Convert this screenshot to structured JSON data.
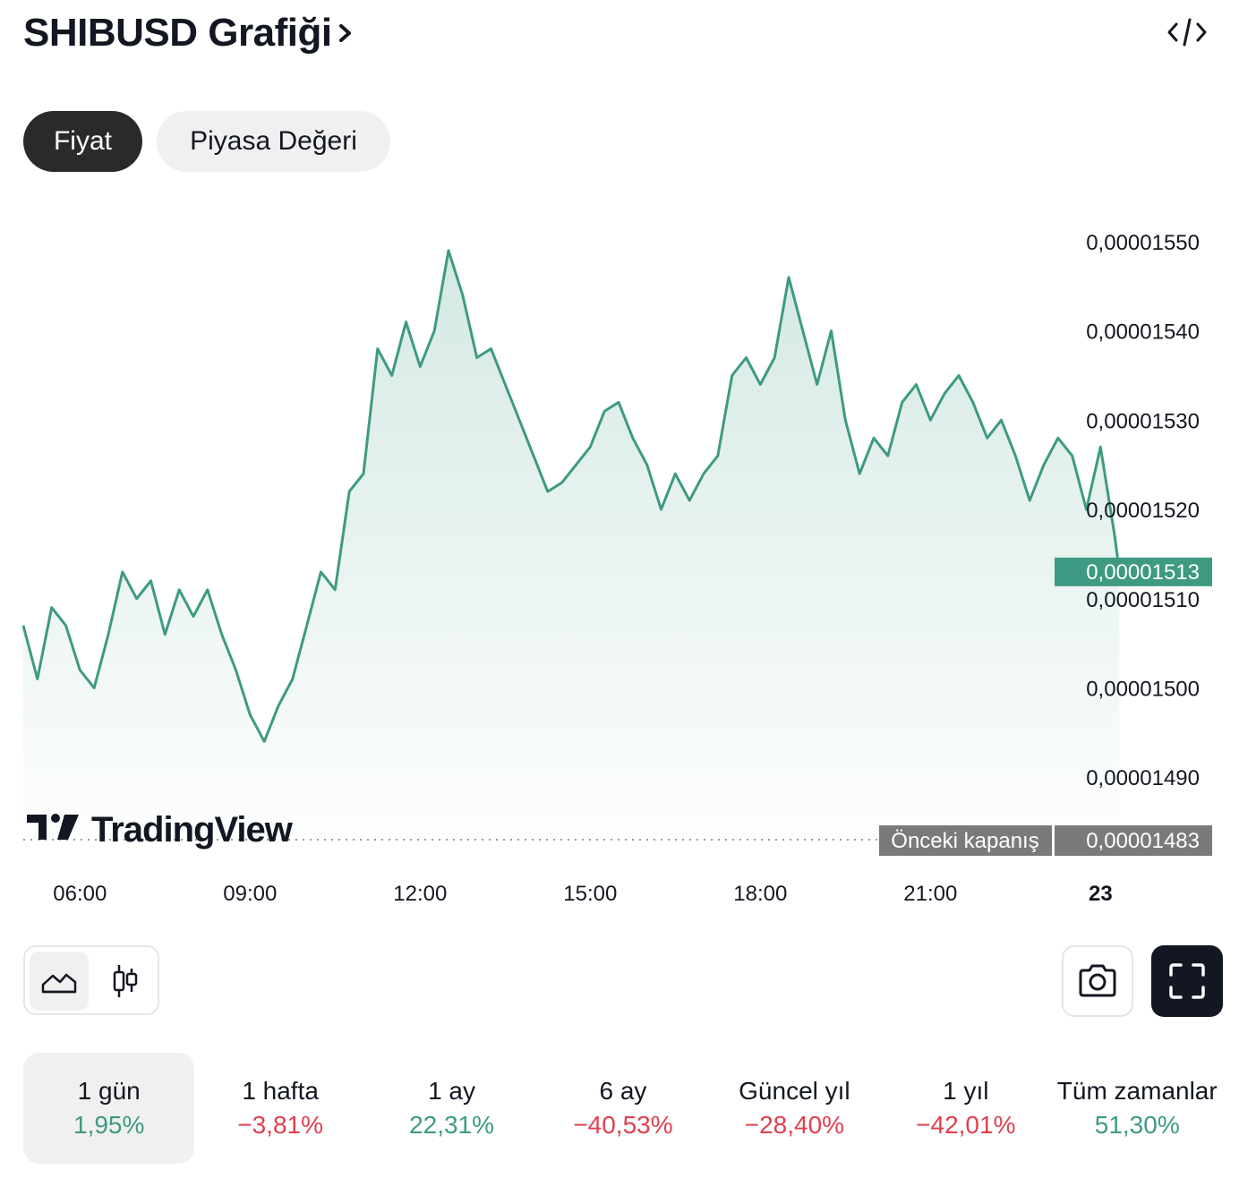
{
  "header": {
    "title": "SHIBUSD Grafiği",
    "chevron_icon": "chevron-right-icon",
    "embed_icon": "code-embed-icon"
  },
  "tabs": [
    {
      "label": "Fiyat",
      "active": true
    },
    {
      "label": "Piyasa Değeri",
      "active": false
    }
  ],
  "chart_data": {
    "type": "area",
    "symbol": "SHIBUSD",
    "interval_label": "1 gün",
    "line_color": "#3e9a82",
    "x_ticks": [
      "06:00",
      "09:00",
      "12:00",
      "15:00",
      "18:00",
      "21:00",
      "23"
    ],
    "y_ticks": [
      "0,00001550",
      "0,00001540",
      "0,00001530",
      "0,00001520",
      "0,00001510",
      "0,00001500",
      "0,00001490"
    ],
    "ylim": [
      1.483e-05,
      1.553e-05
    ],
    "xlim": [
      "05:00",
      "00:30"
    ],
    "grid": false,
    "current_price_label": "0,00001513",
    "current_price": 1.513e-05,
    "previous_close_text": "Önceki kapanış",
    "previous_close_label": "0,00001483",
    "previous_close": 1.483e-05,
    "watermark": "TradingView",
    "series": [
      {
        "x": [
          "05:00",
          "05:15",
          "05:30",
          "05:45",
          "06:00",
          "06:15",
          "06:30",
          "06:45",
          "07:00",
          "07:15",
          "07:30",
          "07:45",
          "08:00",
          "08:15",
          "08:30",
          "08:45",
          "09:00",
          "09:15",
          "09:30",
          "09:45",
          "10:00",
          "10:15",
          "10:30",
          "10:45",
          "11:00",
          "11:15",
          "11:30",
          "11:45",
          "12:00",
          "12:15",
          "12:30",
          "12:45",
          "13:00",
          "13:15",
          "13:30",
          "13:45",
          "14:00",
          "14:15",
          "14:30",
          "14:45",
          "15:00",
          "15:15",
          "15:30",
          "15:45",
          "16:00",
          "16:15",
          "16:30",
          "16:45",
          "17:00",
          "17:15",
          "17:30",
          "17:45",
          "18:00",
          "18:15",
          "18:30",
          "18:45",
          "19:00",
          "19:15",
          "19:30",
          "19:45",
          "20:00",
          "20:15",
          "20:30",
          "20:45",
          "21:00",
          "21:15",
          "21:30",
          "21:45",
          "22:00",
          "22:15",
          "22:30",
          "22:45",
          "23:00",
          "23:15",
          "23:30",
          "23:45",
          "00:00",
          "00:15",
          "00:20"
        ],
        "y": [
          1.507e-05,
          1.501e-05,
          1.509e-05,
          1.507e-05,
          1.502e-05,
          1.5e-05,
          1.506e-05,
          1.513e-05,
          1.51e-05,
          1.512e-05,
          1.506e-05,
          1.511e-05,
          1.508e-05,
          1.511e-05,
          1.506e-05,
          1.502e-05,
          1.497e-05,
          1.494e-05,
          1.498e-05,
          1.501e-05,
          1.507e-05,
          1.513e-05,
          1.511e-05,
          1.522e-05,
          1.524e-05,
          1.538e-05,
          1.535e-05,
          1.541e-05,
          1.536e-05,
          1.54e-05,
          1.549e-05,
          1.544e-05,
          1.537e-05,
          1.538e-05,
          1.534e-05,
          1.53e-05,
          1.526e-05,
          1.522e-05,
          1.523e-05,
          1.525e-05,
          1.527e-05,
          1.531e-05,
          1.532e-05,
          1.528e-05,
          1.525e-05,
          1.52e-05,
          1.524e-05,
          1.521e-05,
          1.524e-05,
          1.526e-05,
          1.535e-05,
          1.537e-05,
          1.534e-05,
          1.537e-05,
          1.546e-05,
          1.54e-05,
          1.534e-05,
          1.54e-05,
          1.53e-05,
          1.524e-05,
          1.528e-05,
          1.526e-05,
          1.532e-05,
          1.534e-05,
          1.53e-05,
          1.533e-05,
          1.535e-05,
          1.532e-05,
          1.528e-05,
          1.53e-05,
          1.526e-05,
          1.521e-05,
          1.525e-05,
          1.528e-05,
          1.526e-05,
          1.52e-05,
          1.527e-05,
          1.517e-05,
          1.513e-05
        ]
      }
    ]
  },
  "toolbar": {
    "area_icon": "area-chart-icon",
    "candle_icon": "candlestick-icon",
    "camera_icon": "camera-icon",
    "fullscreen_icon": "fullscreen-icon"
  },
  "periods": [
    {
      "label": "1 gün",
      "value": "1,95%",
      "trend": "pos",
      "active": true
    },
    {
      "label": "1 hafta",
      "value": "−3,81%",
      "trend": "neg",
      "active": false
    },
    {
      "label": "1 ay",
      "value": "22,31%",
      "trend": "pos",
      "active": false
    },
    {
      "label": "6 ay",
      "value": "−40,53%",
      "trend": "neg",
      "active": false
    },
    {
      "label": "Güncel yıl",
      "value": "−28,40%",
      "trend": "neg",
      "active": false
    },
    {
      "label": "1 yıl",
      "value": "−42,01%",
      "trend": "neg",
      "active": false
    },
    {
      "label": "Tüm zamanlar",
      "value": "51,30%",
      "trend": "pos",
      "active": false
    }
  ],
  "colors": {
    "accent": "#3e9a82",
    "negative": "#e0404e",
    "dark": "#131722",
    "prev_close_badge": "#7a7a7a"
  }
}
